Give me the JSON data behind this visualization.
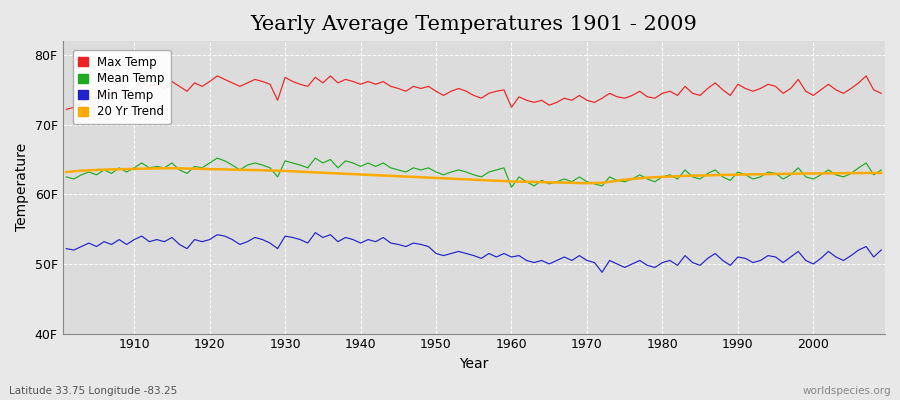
{
  "title": "Yearly Average Temperatures 1901 - 2009",
  "xlabel": "Year",
  "ylabel": "Temperature",
  "footnote_left": "Latitude 33.75 Longitude -83.25",
  "footnote_right": "worldspecies.org",
  "years": [
    1901,
    1902,
    1903,
    1904,
    1905,
    1906,
    1907,
    1908,
    1909,
    1910,
    1911,
    1912,
    1913,
    1914,
    1915,
    1916,
    1917,
    1918,
    1919,
    1920,
    1921,
    1922,
    1923,
    1924,
    1925,
    1926,
    1927,
    1928,
    1929,
    1930,
    1931,
    1932,
    1933,
    1934,
    1935,
    1936,
    1937,
    1938,
    1939,
    1940,
    1941,
    1942,
    1943,
    1944,
    1945,
    1946,
    1947,
    1948,
    1949,
    1950,
    1951,
    1952,
    1953,
    1954,
    1955,
    1956,
    1957,
    1958,
    1959,
    1960,
    1961,
    1962,
    1963,
    1964,
    1965,
    1966,
    1967,
    1968,
    1969,
    1970,
    1971,
    1972,
    1973,
    1974,
    1975,
    1976,
    1977,
    1978,
    1979,
    1980,
    1981,
    1982,
    1983,
    1984,
    1985,
    1986,
    1987,
    1988,
    1989,
    1990,
    1991,
    1992,
    1993,
    1994,
    1995,
    1996,
    1997,
    1998,
    1999,
    2000,
    2001,
    2002,
    2003,
    2004,
    2005,
    2006,
    2007,
    2008,
    2009
  ],
  "max_temp": [
    72.2,
    72.5,
    73.2,
    74.0,
    73.8,
    74.5,
    74.2,
    75.0,
    74.5,
    75.2,
    76.0,
    75.5,
    75.8,
    75.2,
    76.2,
    75.5,
    74.8,
    76.0,
    75.5,
    76.2,
    77.0,
    76.5,
    76.0,
    75.5,
    76.0,
    76.5,
    76.2,
    75.8,
    73.5,
    76.8,
    76.2,
    75.8,
    75.5,
    76.8,
    76.0,
    77.0,
    76.0,
    76.5,
    76.2,
    75.8,
    76.2,
    75.8,
    76.2,
    75.5,
    75.2,
    74.8,
    75.5,
    75.2,
    75.5,
    74.8,
    74.2,
    74.8,
    75.2,
    74.8,
    74.2,
    73.8,
    74.5,
    74.8,
    75.0,
    72.5,
    74.0,
    73.5,
    73.2,
    73.5,
    72.8,
    73.2,
    73.8,
    73.5,
    74.2,
    73.5,
    73.2,
    73.8,
    74.5,
    74.0,
    73.8,
    74.2,
    74.8,
    74.0,
    73.8,
    74.5,
    74.8,
    74.2,
    75.5,
    74.5,
    74.2,
    75.2,
    76.0,
    75.0,
    74.2,
    75.8,
    75.2,
    74.8,
    75.2,
    75.8,
    75.5,
    74.5,
    75.2,
    76.5,
    74.8,
    74.2,
    75.0,
    75.8,
    75.0,
    74.5,
    75.2,
    76.0,
    77.0,
    75.0,
    74.5
  ],
  "mean_temp": [
    62.5,
    62.2,
    62.8,
    63.2,
    62.8,
    63.5,
    63.0,
    63.8,
    63.2,
    63.8,
    64.5,
    63.8,
    64.0,
    63.8,
    64.5,
    63.5,
    63.0,
    64.0,
    63.8,
    64.5,
    65.2,
    64.8,
    64.2,
    63.5,
    64.2,
    64.5,
    64.2,
    63.8,
    62.5,
    64.8,
    64.5,
    64.2,
    63.8,
    65.2,
    64.5,
    65.0,
    63.8,
    64.8,
    64.5,
    64.0,
    64.5,
    64.0,
    64.5,
    63.8,
    63.5,
    63.2,
    63.8,
    63.5,
    63.8,
    63.2,
    62.8,
    63.2,
    63.5,
    63.2,
    62.8,
    62.5,
    63.2,
    63.5,
    63.8,
    61.0,
    62.5,
    61.8,
    61.2,
    62.0,
    61.5,
    61.8,
    62.2,
    61.8,
    62.5,
    61.8,
    61.5,
    61.2,
    62.5,
    62.0,
    61.8,
    62.2,
    62.8,
    62.2,
    61.8,
    62.5,
    62.8,
    62.2,
    63.5,
    62.5,
    62.2,
    63.0,
    63.5,
    62.5,
    62.0,
    63.2,
    62.8,
    62.2,
    62.5,
    63.2,
    63.0,
    62.2,
    62.8,
    63.8,
    62.5,
    62.2,
    62.8,
    63.5,
    62.8,
    62.5,
    63.0,
    63.8,
    64.5,
    62.8,
    63.5
  ],
  "min_temp": [
    52.2,
    52.0,
    52.5,
    53.0,
    52.5,
    53.2,
    52.8,
    53.5,
    52.8,
    53.5,
    54.0,
    53.2,
    53.5,
    53.2,
    53.8,
    52.8,
    52.2,
    53.5,
    53.2,
    53.5,
    54.2,
    54.0,
    53.5,
    52.8,
    53.2,
    53.8,
    53.5,
    53.0,
    52.2,
    54.0,
    53.8,
    53.5,
    53.0,
    54.5,
    53.8,
    54.2,
    53.2,
    53.8,
    53.5,
    53.0,
    53.5,
    53.2,
    53.8,
    53.0,
    52.8,
    52.5,
    53.0,
    52.8,
    52.5,
    51.5,
    51.2,
    51.5,
    51.8,
    51.5,
    51.2,
    50.8,
    51.5,
    51.0,
    51.5,
    51.0,
    51.2,
    50.5,
    50.2,
    50.5,
    50.0,
    50.5,
    51.0,
    50.5,
    51.2,
    50.5,
    50.2,
    48.8,
    50.5,
    50.0,
    49.5,
    50.0,
    50.5,
    49.8,
    49.5,
    50.2,
    50.5,
    49.8,
    51.2,
    50.2,
    49.8,
    50.8,
    51.5,
    50.5,
    49.8,
    51.0,
    50.8,
    50.2,
    50.5,
    51.2,
    51.0,
    50.2,
    51.0,
    51.8,
    50.5,
    50.0,
    50.8,
    51.8,
    51.0,
    50.5,
    51.2,
    52.0,
    52.5,
    51.0,
    52.0
  ],
  "trend_mean": [
    63.2,
    63.3,
    63.4,
    63.45,
    63.5,
    63.55,
    63.58,
    63.6,
    63.62,
    63.65,
    63.68,
    63.7,
    63.72,
    63.74,
    63.75,
    63.73,
    63.7,
    63.68,
    63.65,
    63.62,
    63.6,
    63.58,
    63.55,
    63.52,
    63.5,
    63.48,
    63.45,
    63.42,
    63.4,
    63.35,
    63.3,
    63.25,
    63.2,
    63.15,
    63.1,
    63.05,
    63.0,
    62.95,
    62.9,
    62.85,
    62.8,
    62.75,
    62.7,
    62.65,
    62.6,
    62.55,
    62.5,
    62.45,
    62.4,
    62.35,
    62.3,
    62.25,
    62.2,
    62.15,
    62.1,
    62.05,
    62.0,
    61.95,
    61.9,
    61.85,
    61.82,
    61.8,
    61.78,
    61.75,
    61.72,
    61.7,
    61.68,
    61.65,
    61.62,
    61.6,
    61.62,
    61.65,
    61.8,
    61.95,
    62.1,
    62.2,
    62.3,
    62.4,
    62.45,
    62.5,
    62.55,
    62.6,
    62.65,
    62.68,
    62.7,
    62.72,
    62.75,
    62.78,
    62.8,
    62.82,
    62.85,
    62.87,
    62.88,
    62.9,
    62.92,
    62.93,
    62.95,
    62.97,
    62.98,
    63.0,
    63.0,
    63.02,
    63.02,
    63.03,
    63.05,
    63.05,
    63.06,
    63.07,
    63.08
  ],
  "bg_color": "#e8e8e8",
  "plot_bg_color": "#dcdcdc",
  "max_color": "#ee2222",
  "mean_color": "#22aa22",
  "min_color": "#2222cc",
  "trend_color": "#ffaa00",
  "grid_color": "#ffffff",
  "ylim": [
    40,
    82
  ],
  "yticks": [
    40,
    50,
    60,
    70,
    80
  ],
  "ytick_labels": [
    "40F",
    "50F",
    "60F",
    "70F",
    "80F"
  ],
  "xticks": [
    1910,
    1920,
    1930,
    1940,
    1950,
    1960,
    1970,
    1980,
    1990,
    2000
  ],
  "title_fontsize": 15,
  "label_fontsize": 10,
  "tick_fontsize": 9,
  "legend_entries": [
    "Max Temp",
    "Mean Temp",
    "Min Temp",
    "20 Yr Trend"
  ],
  "legend_colors": [
    "#ee2222",
    "#22aa22",
    "#2222cc",
    "#ffaa00"
  ]
}
